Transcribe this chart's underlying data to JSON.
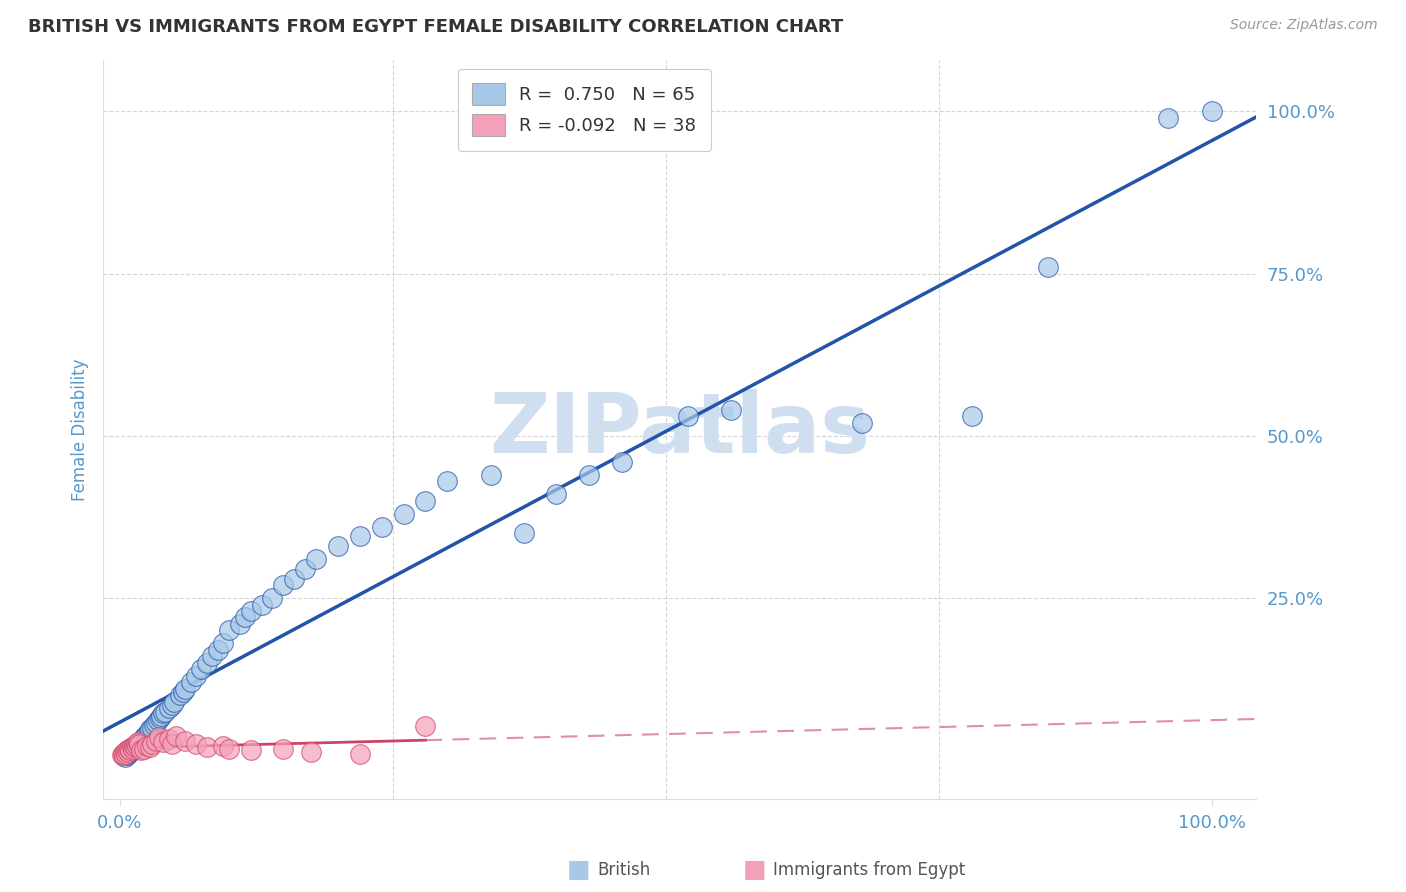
{
  "title": "BRITISH VS IMMIGRANTS FROM EGYPT FEMALE DISABILITY CORRELATION CHART",
  "source": "Source: ZipAtlas.com",
  "ylabel": "Female Disability",
  "legend_british_R": "0.750",
  "legend_british_N": "65",
  "legend_egypt_R": "-0.092",
  "legend_egypt_N": "38",
  "british_color": "#a8c8e8",
  "egypt_color": "#f4a0b8",
  "british_line_color": "#2255aa",
  "egypt_line_color": "#cc4466",
  "watermark_text": "ZIPatlas",
  "watermark_color": "#d0dff0",
  "background_color": "#ffffff",
  "grid_color": "#cccccc",
  "title_color": "#333333",
  "tick_label_color": "#5599cc",
  "source_color": "#999999",
  "british_x": [
    0.005,
    0.007,
    0.008,
    0.01,
    0.012,
    0.013,
    0.015,
    0.016,
    0.017,
    0.018,
    0.02,
    0.022,
    0.023,
    0.025,
    0.027,
    0.028,
    0.03,
    0.032,
    0.033,
    0.035,
    0.037,
    0.038,
    0.04,
    0.042,
    0.045,
    0.048,
    0.05,
    0.055,
    0.058,
    0.06,
    0.065,
    0.07,
    0.075,
    0.08,
    0.085,
    0.09,
    0.095,
    0.1,
    0.11,
    0.115,
    0.12,
    0.13,
    0.14,
    0.15,
    0.16,
    0.17,
    0.18,
    0.2,
    0.22,
    0.24,
    0.26,
    0.28,
    0.3,
    0.34,
    0.37,
    0.4,
    0.43,
    0.46,
    0.52,
    0.56,
    0.68,
    0.78,
    0.85,
    0.96,
    1.0
  ],
  "british_y": [
    0.005,
    0.008,
    0.01,
    0.012,
    0.015,
    0.018,
    0.02,
    0.022,
    0.025,
    0.028,
    0.03,
    0.035,
    0.038,
    0.04,
    0.045,
    0.048,
    0.05,
    0.055,
    0.058,
    0.062,
    0.065,
    0.068,
    0.072,
    0.075,
    0.08,
    0.085,
    0.09,
    0.1,
    0.105,
    0.11,
    0.12,
    0.13,
    0.14,
    0.15,
    0.16,
    0.17,
    0.18,
    0.2,
    0.21,
    0.22,
    0.23,
    0.24,
    0.25,
    0.27,
    0.28,
    0.295,
    0.31,
    0.33,
    0.345,
    0.36,
    0.38,
    0.4,
    0.43,
    0.44,
    0.35,
    0.41,
    0.44,
    0.46,
    0.53,
    0.54,
    0.52,
    0.53,
    0.76,
    0.99,
    1.0
  ],
  "egypt_x": [
    0.002,
    0.003,
    0.004,
    0.005,
    0.006,
    0.007,
    0.008,
    0.009,
    0.01,
    0.011,
    0.012,
    0.013,
    0.014,
    0.015,
    0.016,
    0.017,
    0.018,
    0.02,
    0.022,
    0.025,
    0.028,
    0.03,
    0.033,
    0.036,
    0.04,
    0.045,
    0.048,
    0.052,
    0.06,
    0.07,
    0.08,
    0.095,
    0.1,
    0.12,
    0.15,
    0.175,
    0.22,
    0.28
  ],
  "egypt_y": [
    0.008,
    0.01,
    0.008,
    0.012,
    0.01,
    0.015,
    0.012,
    0.018,
    0.015,
    0.02,
    0.018,
    0.022,
    0.02,
    0.025,
    0.022,
    0.028,
    0.025,
    0.015,
    0.018,
    0.022,
    0.02,
    0.025,
    0.03,
    0.035,
    0.028,
    0.032,
    0.025,
    0.038,
    0.03,
    0.025,
    0.02,
    0.022,
    0.018,
    0.015,
    0.018,
    0.012,
    0.01,
    0.052
  ],
  "xlim": [
    -0.015,
    1.04
  ],
  "ylim": [
    -0.06,
    1.08
  ],
  "xtick_positions": [
    0.0,
    1.0
  ],
  "xtick_labels": [
    "0.0%",
    "100.0%"
  ],
  "ytick_positions": [
    0.25,
    0.5,
    0.75,
    1.0
  ],
  "ytick_labels": [
    "25.0%",
    "50.0%",
    "75.0%",
    "100.0%"
  ]
}
